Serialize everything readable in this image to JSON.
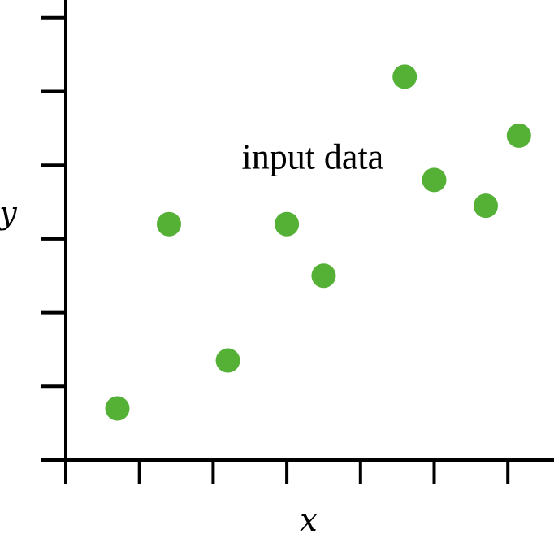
{
  "chart_data": {
    "type": "scatter",
    "title": "",
    "xlabel": "x",
    "ylabel": "y",
    "xlim": [
      0,
      6
    ],
    "ylim": [
      0,
      6
    ],
    "x_ticks": [
      0,
      1,
      2,
      3,
      4,
      5,
      6
    ],
    "y_ticks": [
      0,
      1,
      2,
      3,
      4,
      5,
      6
    ],
    "grid": false,
    "legend": "none",
    "series": [
      {
        "color": "#54b135",
        "points": [
          {
            "x": 0.7,
            "y": 0.7
          },
          {
            "x": 1.4,
            "y": 3.2
          },
          {
            "x": 2.2,
            "y": 1.35
          },
          {
            "x": 3.0,
            "y": 3.2
          },
          {
            "x": 3.5,
            "y": 2.5
          },
          {
            "x": 4.6,
            "y": 5.2
          },
          {
            "x": 5.0,
            "y": 3.8
          },
          {
            "x": 5.7,
            "y": 3.45
          },
          {
            "x": 6.15,
            "y": 4.4
          }
        ]
      }
    ],
    "annotations": [
      {
        "text": "input data",
        "x": 3.35,
        "y": 3.95
      }
    ]
  }
}
